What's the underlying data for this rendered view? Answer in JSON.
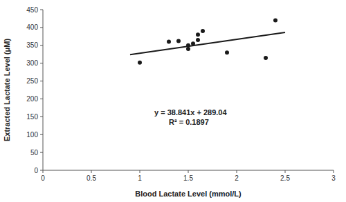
{
  "chart_data": {
    "type": "scatter",
    "x_label": "Blood Lactate Level (mmol/L)",
    "y_label": "Extracted Lactate Level (μM)",
    "xlim": [
      0,
      3
    ],
    "ylim": [
      0,
      450
    ],
    "xticks": [
      0,
      0.5,
      1,
      1.5,
      2,
      2.5,
      3
    ],
    "yticks": [
      0,
      50,
      100,
      150,
      200,
      250,
      300,
      350,
      400,
      450
    ],
    "grid": false,
    "series": [
      {
        "type": "scatter",
        "color": "#1a1a1a",
        "marker": "circle",
        "x": [
          1.0,
          1.3,
          1.4,
          1.5,
          1.5,
          1.55,
          1.6,
          1.6,
          1.65,
          1.9,
          2.3,
          2.4
        ],
        "values": [
          302,
          360,
          362,
          340,
          350,
          355,
          380,
          365,
          390,
          330,
          315,
          420
        ]
      },
      {
        "type": "line",
        "color": "#1a1a1a",
        "line_style": "solid",
        "x": [
          0.9,
          2.5
        ],
        "values": [
          323.9969,
          386.1425
        ]
      }
    ],
    "annotations": [
      {
        "text": "y = 38.841x + 289.04",
        "x": 1.15,
        "y": 155
      },
      {
        "text": "R² = 0.1897",
        "x": 1.3,
        "y": 127
      }
    ]
  }
}
